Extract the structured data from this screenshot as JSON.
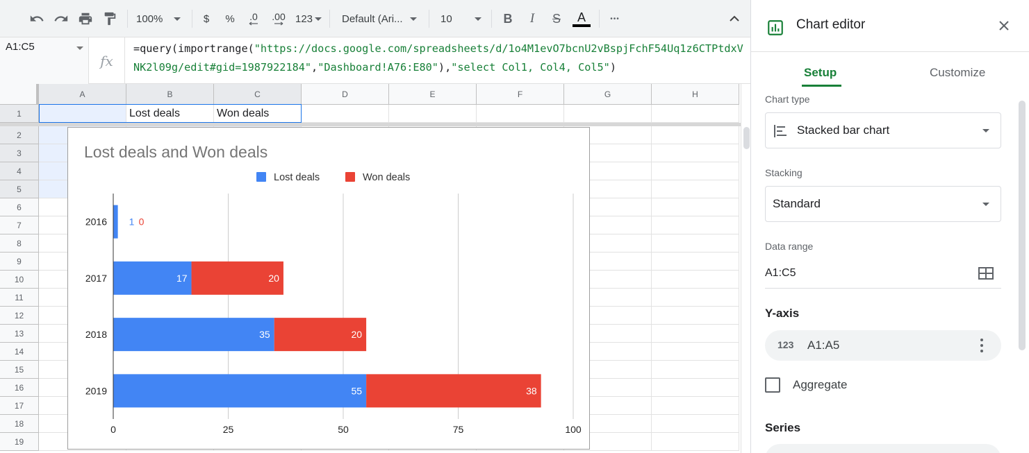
{
  "toolbar": {
    "zoom": "100%",
    "currency": "$",
    "percent": "%",
    "decrease_decimals": ".0",
    "increase_decimals": ".00",
    "more_formats": "123",
    "font": "Default (Ari...",
    "font_size": "10",
    "bold": "B",
    "italic": "I",
    "strikethrough": "S",
    "text_color": "A",
    "more": "•••"
  },
  "formula_bar": {
    "name_box": "A1:C5",
    "fx": "fx",
    "formula_prefix": "=query(importrange(",
    "url": "\"https://docs.google.com/spreadsheets/d/1o4M1evO7bcnU2vBspjFchF54Uq1z6CTPtdxVNK2l09g/edit#gid=1987922184\"",
    "comma1": ",",
    "range_arg": "\"Dashboard!A76:E80\"",
    "mid": "),",
    "select_arg": "\"select Col1, Col4, Col5\"",
    "suffix": ")"
  },
  "grid": {
    "columns": [
      "A",
      "B",
      "C",
      "D",
      "E",
      "F",
      "G",
      "H"
    ],
    "rows": [
      "1",
      "2",
      "3",
      "4",
      "5",
      "6",
      "7",
      "8",
      "9",
      "10",
      "11",
      "12",
      "13",
      "14",
      "15",
      "16",
      "17",
      "18",
      "19"
    ],
    "cells": {
      "B1": "Lost deals",
      "C1": "Won deals"
    }
  },
  "chart_data": {
    "type": "bar",
    "orientation": "horizontal",
    "stacking": "standard",
    "title": "Lost deals and Won deals",
    "categories": [
      "2016",
      "2017",
      "2018",
      "2019"
    ],
    "series": [
      {
        "name": "Lost deals",
        "values": [
          1,
          17,
          35,
          55
        ],
        "color": "#4285f4"
      },
      {
        "name": "Won deals",
        "values": [
          0,
          20,
          20,
          38
        ],
        "color": "#ea4335"
      }
    ],
    "x_ticks": [
      "0",
      "25",
      "50",
      "75",
      "100"
    ],
    "xlim": [
      0,
      100
    ],
    "legend_position": "top",
    "data_labels": true,
    "gridlines": true
  },
  "panel": {
    "title": "Chart editor",
    "tabs": [
      "Setup",
      "Customize"
    ],
    "chart_type_label": "Chart type",
    "chart_type_value": "Stacked bar chart",
    "stacking_label": "Stacking",
    "stacking_value": "Standard",
    "data_range_label": "Data range",
    "data_range_value": "A1:C5",
    "y_axis_heading": "Y-axis",
    "y_axis_icon": "123",
    "y_axis_range": "A1:A5",
    "aggregate_label": "Aggregate",
    "series_heading": "Series"
  },
  "colors": {
    "accent_green": "#188038",
    "selection_blue": "#1a73e8",
    "lost": "#4285f4",
    "won": "#ea4335"
  }
}
